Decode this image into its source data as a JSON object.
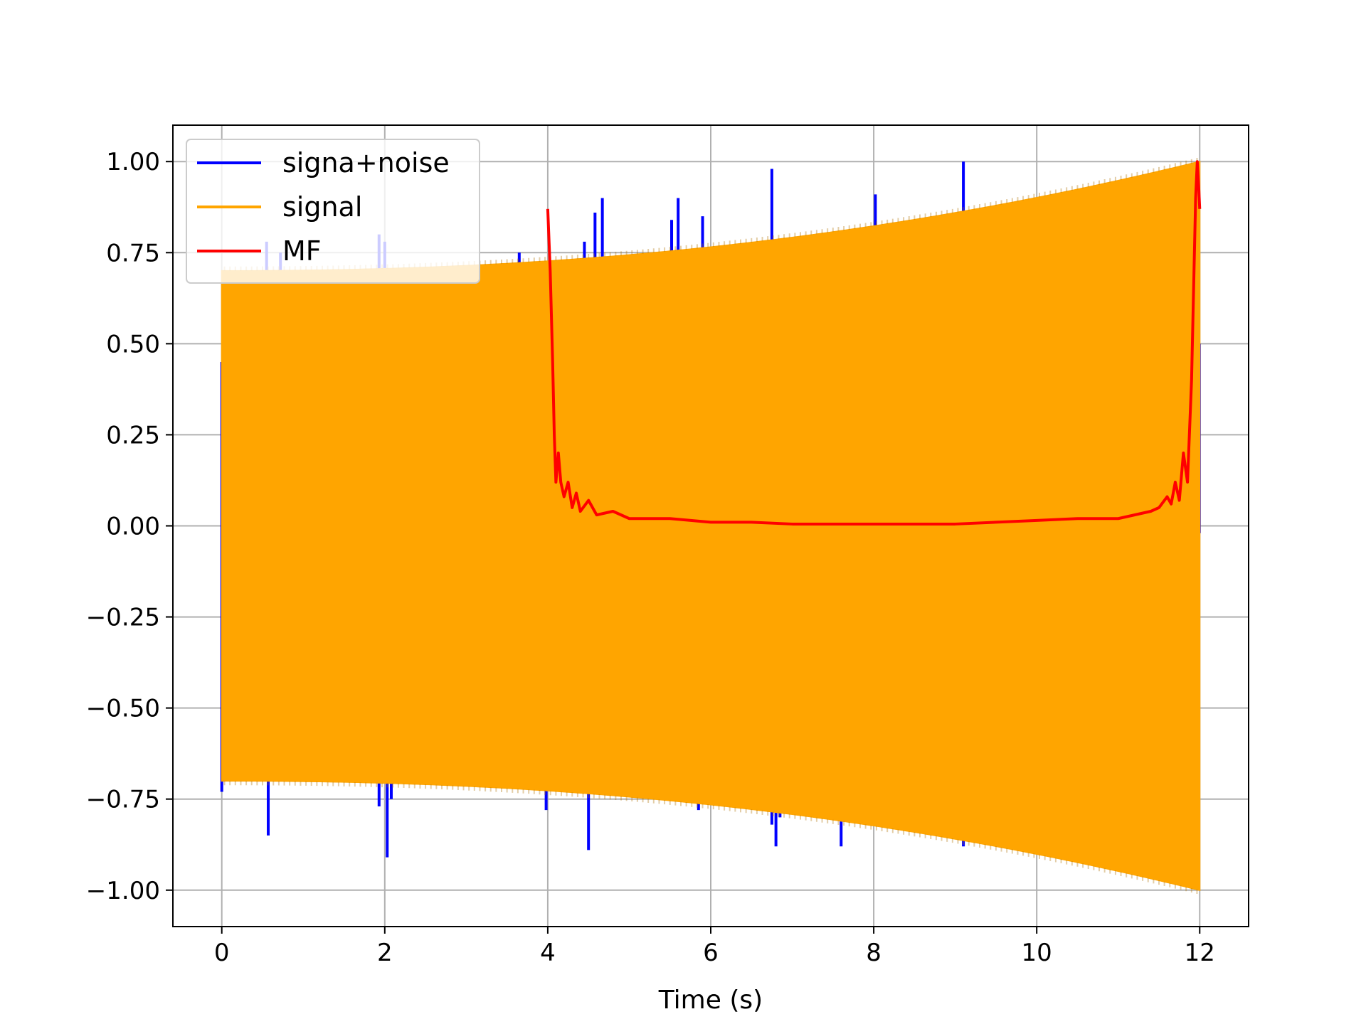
{
  "chart_data": {
    "type": "line",
    "title": "",
    "xlabel": "Time (s)",
    "ylabel": "",
    "xlim": [
      -0.6,
      12.6
    ],
    "ylim": [
      -1.1,
      1.1
    ],
    "grid": true,
    "legend_position": "top-left",
    "x_ticks": [
      0,
      2,
      4,
      6,
      8,
      10,
      12
    ],
    "y_ticks": [
      1.0,
      0.75,
      0.5,
      0.25,
      0.0,
      -0.25,
      -0.5,
      -0.75,
      -1.0
    ],
    "x_tick_labels": [
      "0",
      "2",
      "4",
      "6",
      "8",
      "10",
      "12"
    ],
    "y_tick_labels": [
      "1.00",
      "0.75",
      "0.50",
      "0.25",
      "0.00",
      "−0.25",
      "−0.50",
      "−0.75",
      "−1.00"
    ],
    "series": [
      {
        "name": "signa+noise",
        "color": "#0000ff",
        "description_kind": "signal_plus_spikes",
        "spikes": [
          [
            0.0,
            0.45
          ],
          [
            0.0,
            -0.73
          ],
          [
            0.55,
            0.78
          ],
          [
            0.57,
            -0.85
          ],
          [
            0.72,
            0.75
          ],
          [
            0.5,
            -0.7
          ],
          [
            1.93,
            0.8
          ],
          [
            1.93,
            -0.77
          ],
          [
            2.03,
            -0.91
          ],
          [
            2.08,
            -0.75
          ],
          [
            2.0,
            0.78
          ],
          [
            3.65,
            0.75
          ],
          [
            3.98,
            -0.78
          ],
          [
            4.45,
            0.78
          ],
          [
            4.5,
            -0.89
          ],
          [
            4.58,
            0.86
          ],
          [
            4.67,
            0.9
          ],
          [
            5.52,
            0.84
          ],
          [
            5.6,
            0.9
          ],
          [
            5.85,
            -0.78
          ],
          [
            5.9,
            0.85
          ],
          [
            6.75,
            0.98
          ],
          [
            6.75,
            -0.82
          ],
          [
            6.8,
            -0.88
          ],
          [
            6.85,
            -0.8
          ],
          [
            7.6,
            -0.88
          ],
          [
            8.02,
            0.91
          ],
          [
            9.1,
            1.0
          ],
          [
            9.1,
            -0.88
          ]
        ]
      },
      {
        "name": "signal",
        "color": "#ffa500",
        "t_start": 0.0,
        "t_end": 12.0,
        "envelope_start": 0.7,
        "envelope_end": 1.0
      },
      {
        "name": "MF",
        "color": "#ff0000",
        "x": [
          4.0,
          4.03,
          4.06,
          4.08,
          4.1,
          4.13,
          4.16,
          4.2,
          4.25,
          4.3,
          4.35,
          4.4,
          4.5,
          4.6,
          4.8,
          5.0,
          5.5,
          6.0,
          6.5,
          7.0,
          7.5,
          8.0,
          8.5,
          9.0,
          9.5,
          10.0,
          10.5,
          11.0,
          11.2,
          11.4,
          11.5,
          11.6,
          11.65,
          11.7,
          11.75,
          11.8,
          11.85,
          11.9,
          11.93,
          11.95,
          11.97,
          11.99,
          12.0
        ],
        "y": [
          0.87,
          0.7,
          0.45,
          0.25,
          0.12,
          0.2,
          0.12,
          0.08,
          0.12,
          0.05,
          0.09,
          0.04,
          0.07,
          0.03,
          0.04,
          0.02,
          0.02,
          0.01,
          0.01,
          0.005,
          0.005,
          0.005,
          0.005,
          0.005,
          0.01,
          0.015,
          0.02,
          0.02,
          0.03,
          0.04,
          0.05,
          0.08,
          0.06,
          0.12,
          0.07,
          0.2,
          0.12,
          0.4,
          0.7,
          0.9,
          1.0,
          0.92,
          0.87
        ]
      }
    ]
  }
}
